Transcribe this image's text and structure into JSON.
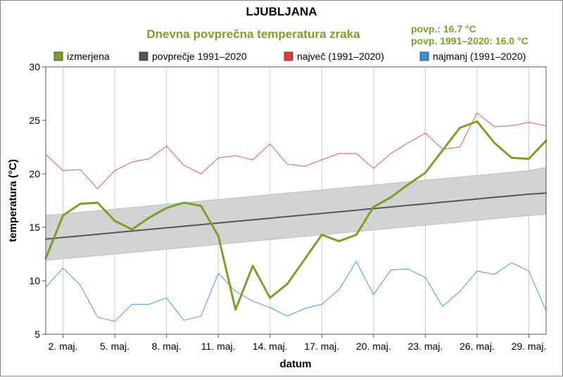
{
  "header": {
    "title": "LJUBLJANA",
    "subtitle": "Dnevna povprečna temperatura zraka",
    "stat_measured": "povp.: 16.7 °C",
    "stat_normal": "povp. 1991–2020: 16.0 °C"
  },
  "legend": [
    {
      "label": "izmerjena",
      "color": "#7aa126"
    },
    {
      "label": "povprečje 1991–2020",
      "color": "#555555"
    },
    {
      "label": "največ (1991–2020)",
      "color": "#e53935"
    },
    {
      "label": "najmanj (1991–2020)",
      "color": "#3a8fd8"
    }
  ],
  "colors": {
    "measured": "#7aa126",
    "normal": "#555555",
    "band": "#d3d3d3",
    "max": "#e05a52",
    "min": "#4a9ad8",
    "grid": "#cccccc",
    "title_green": "#7aa126"
  },
  "chart_data": {
    "type": "line",
    "xlabel": "datum",
    "ylabel": "temperatura (°C)",
    "xlim": [
      1,
      30
    ],
    "ylim": [
      5,
      30
    ],
    "yticks": [
      5,
      10,
      15,
      20,
      25,
      30
    ],
    "xticks": [
      {
        "day": 2,
        "label": "2. maj."
      },
      {
        "day": 5,
        "label": "5. maj."
      },
      {
        "day": 8,
        "label": "8. maj."
      },
      {
        "day": 11,
        "label": "11. maj."
      },
      {
        "day": 14,
        "label": "14. maj."
      },
      {
        "day": 17,
        "label": "17. maj."
      },
      {
        "day": 20,
        "label": "20. maj."
      },
      {
        "day": 23,
        "label": "23. maj."
      },
      {
        "day": 26,
        "label": "26. maj."
      },
      {
        "day": 29,
        "label": "29. maj."
      }
    ],
    "legend_position": "top",
    "grid": "vertical",
    "x": [
      1,
      2,
      3,
      4,
      5,
      6,
      7,
      8,
      9,
      10,
      11,
      12,
      13,
      14,
      15,
      16,
      17,
      18,
      19,
      20,
      21,
      22,
      23,
      24,
      25,
      26,
      27,
      28,
      29,
      30
    ],
    "series": [
      {
        "name": "izmerjena",
        "key": "measured",
        "values": [
          12.1,
          16.1,
          17.2,
          17.3,
          15.6,
          14.8,
          15.9,
          16.8,
          17.3,
          17.0,
          14.2,
          7.3,
          11.4,
          8.4,
          9.7,
          12.0,
          14.3,
          13.7,
          14.3,
          16.9,
          17.8,
          19.0,
          20.1,
          22.2,
          24.3,
          24.9,
          22.9,
          21.5,
          21.4,
          23.1
        ]
      },
      {
        "name": "povprečje 1991–2020",
        "key": "normal",
        "values": [
          13.9,
          14.05,
          14.2,
          14.35,
          14.5,
          14.65,
          14.8,
          14.95,
          15.1,
          15.25,
          15.4,
          15.55,
          15.7,
          15.85,
          16.0,
          16.15,
          16.3,
          16.45,
          16.6,
          16.75,
          16.9,
          17.05,
          17.2,
          17.35,
          17.5,
          17.65,
          17.8,
          17.95,
          18.1,
          18.2
        ]
      },
      {
        "name": "največ (1991–2020)",
        "key": "max",
        "values": [
          21.8,
          20.3,
          20.4,
          18.6,
          20.3,
          21.1,
          21.4,
          22.6,
          20.8,
          20.0,
          21.5,
          21.7,
          21.3,
          22.8,
          20.9,
          20.7,
          21.3,
          21.9,
          21.9,
          20.5,
          21.9,
          22.9,
          23.8,
          22.3,
          22.5,
          25.7,
          24.4,
          24.5,
          24.8,
          24.5
        ]
      },
      {
        "name": "najmanj (1991–2020)",
        "key": "min",
        "values": [
          9.4,
          11.2,
          9.6,
          6.6,
          6.2,
          7.8,
          7.8,
          8.4,
          6.3,
          6.7,
          10.7,
          9.0,
          8.1,
          7.5,
          6.7,
          7.4,
          7.8,
          9.2,
          11.8,
          8.7,
          11.0,
          11.1,
          10.3,
          7.6,
          9.0,
          10.9,
          10.6,
          11.7,
          10.9,
          7.2
        ]
      }
    ],
    "band": {
      "lower": [
        11.9,
        12.05,
        12.2,
        12.35,
        12.5,
        12.65,
        12.8,
        12.95,
        13.1,
        13.25,
        13.4,
        13.55,
        13.7,
        13.85,
        14.0,
        14.15,
        14.3,
        14.45,
        14.6,
        14.75,
        14.9,
        15.05,
        15.2,
        15.35,
        15.5,
        15.65,
        15.8,
        15.95,
        16.1,
        16.2
      ],
      "upper": [
        16.1,
        16.25,
        16.4,
        16.55,
        16.7,
        16.85,
        17.0,
        17.15,
        17.3,
        17.45,
        17.6,
        17.75,
        17.9,
        18.05,
        18.2,
        18.35,
        18.5,
        18.65,
        18.8,
        18.95,
        19.1,
        19.25,
        19.4,
        19.55,
        19.7,
        19.85,
        20.0,
        20.15,
        20.3,
        20.6
      ]
    }
  }
}
